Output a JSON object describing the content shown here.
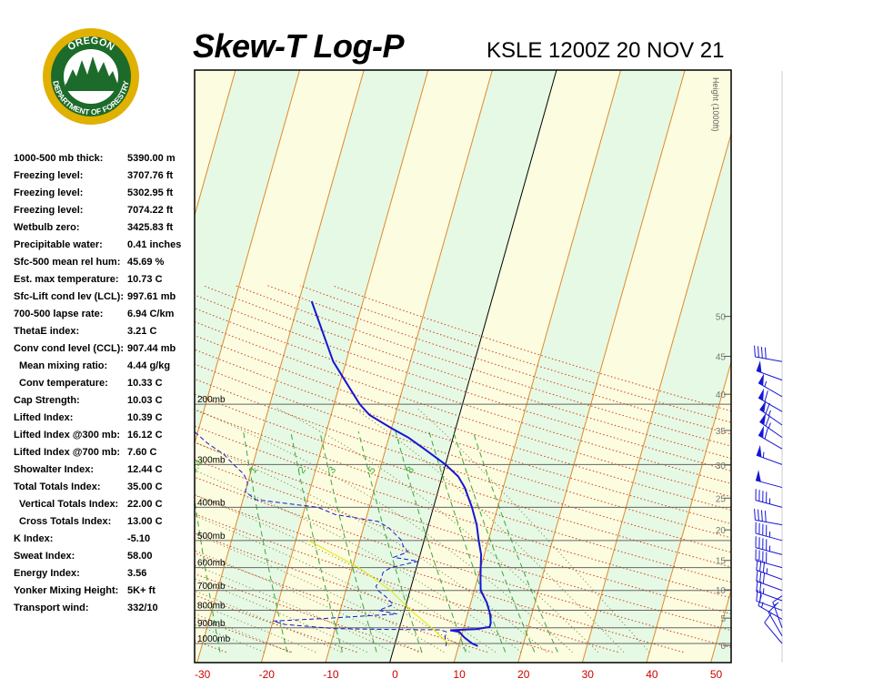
{
  "header": {
    "title": "Skew-T Log-P",
    "subtitle": "KSLE 1200Z 20 NOV 21",
    "logo_top": "OREGON",
    "logo_bottom": "DEPARTMENT OF FORESTRY"
  },
  "stats": [
    {
      "label": "1000-500 mb thick:",
      "value": "5390.00 m",
      "indent": false
    },
    {
      "label": "Freezing level:",
      "value": "3707.76 ft",
      "indent": false
    },
    {
      "label": "Freezing level:",
      "value": "5302.95 ft",
      "indent": false
    },
    {
      "label": "Freezing level:",
      "value": "7074.22 ft",
      "indent": false
    },
    {
      "label": "Wetbulb zero:",
      "value": "3425.83 ft",
      "indent": false
    },
    {
      "label": "Precipitable water:",
      "value": "0.41 inches",
      "indent": false
    },
    {
      "label": "Sfc-500 mean rel hum:",
      "value": "45.69 %",
      "indent": false
    },
    {
      "label": "Est. max temperature:",
      "value": "10.73 C",
      "indent": false
    },
    {
      "label": "Sfc-Lift cond lev (LCL):",
      "value": "997.61 mb",
      "indent": false
    },
    {
      "label": "700-500 lapse rate:",
      "value": "6.94 C/km",
      "indent": false
    },
    {
      "label": "ThetaE index:",
      "value": "3.21 C",
      "indent": false
    },
    {
      "label": "Conv cond level (CCL):",
      "value": "907.44 mb",
      "indent": false
    },
    {
      "label": "Mean mixing ratio:",
      "value": "4.44 g/kg",
      "indent": true
    },
    {
      "label": "Conv temperature:",
      "value": "10.33 C",
      "indent": true
    },
    {
      "label": "Cap Strength:",
      "value": "10.03 C",
      "indent": false
    },
    {
      "label": "Lifted Index:",
      "value": "10.39 C",
      "indent": false
    },
    {
      "label": "Lifted Index @300 mb:",
      "value": "16.12 C",
      "indent": false
    },
    {
      "label": "Lifted Index @700 mb:",
      "value": "7.60 C",
      "indent": false
    },
    {
      "label": "Showalter Index:",
      "value": "12.44 C",
      "indent": false
    },
    {
      "label": "Total Totals Index:",
      "value": "35.00 C",
      "indent": false
    },
    {
      "label": "Vertical Totals Index:",
      "value": "22.00 C",
      "indent": true
    },
    {
      "label": "Cross Totals Index:",
      "value": "13.00 C",
      "indent": true
    },
    {
      "label": "K Index:",
      "value": "-5.10",
      "indent": false
    },
    {
      "label": "Sweat Index:",
      "value": "58.00",
      "indent": false
    },
    {
      "label": "Energy Index:",
      "value": "3.56",
      "indent": false
    },
    {
      "label": "Yonker Mixing Height:",
      "value": "5K+ ft",
      "indent": false
    },
    {
      "label": "Transport wind:",
      "value": "332/10",
      "indent": false
    }
  ],
  "chart_data": {
    "type": "line",
    "title": "Skew-T Log-P",
    "subtitle": "KSLE 1200Z 20 NOV 21",
    "x_axis": {
      "ticks": [
        -30,
        -20,
        -10,
        0,
        10,
        20,
        30,
        40,
        50
      ],
      "range": [
        -30,
        50
      ],
      "unit": "C"
    },
    "pressure_levels": [
      {
        "p": 1000,
        "label": "1000mb"
      },
      {
        "p": 900,
        "label": "900mb"
      },
      {
        "p": 800,
        "label": "800mb"
      },
      {
        "p": 700,
        "label": "700mb"
      },
      {
        "p": 600,
        "label": "600mb"
      },
      {
        "p": 500,
        "label": "500mb"
      },
      {
        "p": 400,
        "label": "400mb"
      },
      {
        "p": 300,
        "label": "300mb"
      },
      {
        "p": 200,
        "label": "200mb"
      }
    ],
    "height_axis": {
      "label": "Height (1000ft)",
      "ticks": [
        0,
        5,
        10,
        15,
        20,
        25,
        30,
        35,
        40,
        45,
        50
      ]
    },
    "mixing_ratio_labels": [
      "0.4",
      "1",
      "2",
      "3",
      "5",
      "8"
    ],
    "series": [
      {
        "name": "",
        "color": "#1616d4",
        "style": "solid",
        "points": [
          [
            1018,
            13
          ],
          [
            1000,
            12
          ],
          [
            960,
            10.5
          ],
          [
            925,
            9.5
          ],
          [
            915,
            8
          ],
          [
            912,
            9.5
          ],
          [
            908,
            12
          ],
          [
            895,
            14
          ],
          [
            870,
            14
          ],
          [
            820,
            13.5
          ],
          [
            760,
            12.5
          ],
          [
            700,
            11
          ],
          [
            650,
            10.5
          ],
          [
            600,
            10
          ],
          [
            550,
            9.5
          ],
          [
            500,
            8.5
          ],
          [
            450,
            7.5
          ],
          [
            400,
            6
          ],
          [
            350,
            4
          ],
          [
            325,
            2.5
          ],
          [
            300,
            0
          ],
          [
            270,
            -4
          ],
          [
            250,
            -7
          ],
          [
            235,
            -10
          ],
          [
            215,
            -14
          ],
          [
            200,
            -16
          ],
          [
            150,
            -22
          ],
          [
            100,
            -28
          ]
        ]
      },
      {
        "name": "",
        "color": "#1616d4",
        "style": "dashed",
        "points": [
          [
            1018,
            8
          ],
          [
            1000,
            8
          ],
          [
            960,
            7.5
          ],
          [
            925,
            7.5
          ],
          [
            912,
            6.5
          ],
          [
            910,
            -1.5
          ],
          [
            905,
            -10
          ],
          [
            880,
            -18
          ],
          [
            860,
            -20
          ],
          [
            845,
            -12
          ],
          [
            820,
            -1
          ],
          [
            800,
            -4
          ],
          [
            770,
            -2
          ],
          [
            730,
            -3.5
          ],
          [
            700,
            -5
          ],
          [
            680,
            -5.5
          ],
          [
            650,
            -5
          ],
          [
            620,
            -5
          ],
          [
            600,
            -4
          ],
          [
            575,
            0
          ],
          [
            560,
            -4
          ],
          [
            540,
            -2
          ],
          [
            520,
            -3
          ],
          [
            500,
            -3.5
          ],
          [
            460,
            -6
          ],
          [
            440,
            -8
          ],
          [
            420,
            -15
          ],
          [
            400,
            -18
          ],
          [
            380,
            -28
          ],
          [
            360,
            -30
          ],
          [
            340,
            -30
          ],
          [
            320,
            -31
          ],
          [
            300,
            -33
          ],
          [
            280,
            -35
          ],
          [
            260,
            -38
          ],
          [
            230,
            -42
          ],
          [
            200,
            -46
          ],
          [
            180,
            -48
          ],
          [
            160,
            -50
          ],
          [
            140,
            -50
          ],
          [
            120,
            -53
          ],
          [
            100,
            -57
          ]
        ]
      },
      {
        "name": "",
        "color": "#e6e600",
        "style": "solid",
        "points": [
          [
            1018,
            8.5
          ],
          [
            997.6,
            8.2
          ],
          [
            900,
            5
          ],
          [
            800,
            1
          ],
          [
            700,
            -3
          ],
          [
            600,
            -9
          ],
          [
            500,
            -18
          ]
        ]
      }
    ],
    "wind_barbs": [
      {
        "p": 1000,
        "dir": 320,
        "spd": 10
      },
      {
        "p": 950,
        "dir": 330,
        "spd": 10
      },
      {
        "p": 900,
        "dir": 340,
        "spd": 15
      },
      {
        "p": 850,
        "dir": 300,
        "spd": 15
      },
      {
        "p": 800,
        "dir": 290,
        "spd": 20
      },
      {
        "p": 750,
        "dir": 290,
        "spd": 25
      },
      {
        "p": 700,
        "dir": 290,
        "spd": 30
      },
      {
        "p": 650,
        "dir": 290,
        "spd": 35
      },
      {
        "p": 600,
        "dir": 285,
        "spd": 40
      },
      {
        "p": 550,
        "dir": 285,
        "spd": 45
      },
      {
        "p": 500,
        "dir": 285,
        "spd": 45
      },
      {
        "p": 450,
        "dir": 280,
        "spd": 40
      },
      {
        "p": 400,
        "dir": 285,
        "spd": 45
      },
      {
        "p": 350,
        "dir": 285,
        "spd": 50
      },
      {
        "p": 300,
        "dir": 290,
        "spd": 55
      },
      {
        "p": 270,
        "dir": 300,
        "spd": 60
      },
      {
        "p": 250,
        "dir": 305,
        "spd": 65
      },
      {
        "p": 230,
        "dir": 305,
        "spd": 65
      },
      {
        "p": 210,
        "dir": 300,
        "spd": 60
      },
      {
        "p": 190,
        "dir": 300,
        "spd": 55
      },
      {
        "p": 170,
        "dir": 290,
        "spd": 50
      },
      {
        "p": 150,
        "dir": 280,
        "spd": 40
      }
    ],
    "colors": {
      "band_green": "#e6f9e4",
      "band_yellow": "#fcfce0",
      "isotherm": "#e08a2a",
      "dry_adiabat": "#d04020",
      "moist_adiabat": "#7a7a30",
      "mixing_ratio": "#3aa83a",
      "x_tick": "#cc0000"
    }
  }
}
